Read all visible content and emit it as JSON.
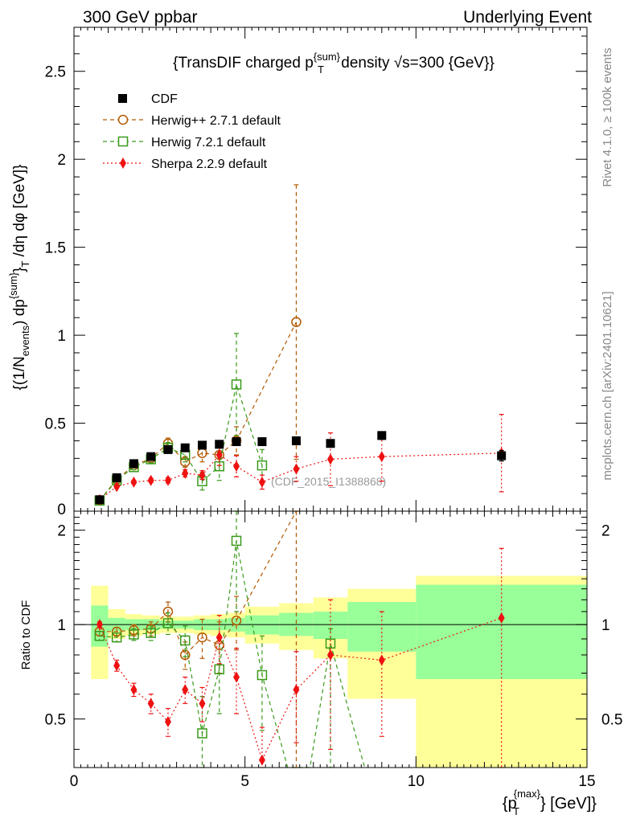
{
  "header": {
    "left": "300 GeV ppbar",
    "right": "Underlying Event"
  },
  "side": {
    "rivet": "Rivet 4.1.0, ≥ 100k events",
    "mcplots": "mcplots.cern.ch [arXiv:2401.10621]"
  },
  "chart_data": {
    "type": "line",
    "title": "{TransDIF charged p^{sum}_T density √s=300 {GeV}}",
    "title_parts": {
      "pre": "{TransDIF charged p",
      "sup": "{sum}",
      "sub": "T",
      "post": " density √s=300 {GeV}}"
    },
    "ylabel": "{(1/N_events) dp^{sum}_T /dη dφ [GeV]}",
    "ylabel_parts": {
      "a": "{(1/N",
      "a_sub": "events",
      "b": ") dp",
      "b_sup": "{sum}",
      "c": "}",
      "c_sub": "T",
      "d": " /dη  dφ [GeV]}"
    },
    "xlabel": "{p_T^{max}} [GeV]}",
    "xlabel_parts": {
      "a": "{p",
      "sup": "{max}",
      "sub": "T",
      "b": "} [GeV]}"
    },
    "watermark": "(CDF_2015_I1388868)",
    "xlim": [
      0,
      15
    ],
    "ylim": [
      0,
      2.75
    ],
    "x_ticks": [
      "0",
      "5",
      "10",
      "15"
    ],
    "y_ticks": [
      "0.5",
      "1",
      "1.5",
      "2",
      "2.5"
    ],
    "y_zero": "0",
    "ratio_ylabel": "Ratio to CDF",
    "ratio_ylim": [
      0.35,
      2.3
    ],
    "ratio_ticks": [
      "0.5",
      "1",
      "2"
    ],
    "legend": [
      "CDF",
      "Herwig++ 2.7.1 default",
      "Herwig 7.2.1 default",
      "Sherpa 2.2.9 default"
    ],
    "bins": [
      {
        "lo": 0.5,
        "hi": 1.0,
        "x": 0.75
      },
      {
        "lo": 1.0,
        "hi": 1.5,
        "x": 1.25
      },
      {
        "lo": 1.5,
        "hi": 2.0,
        "x": 1.75
      },
      {
        "lo": 2.0,
        "hi": 2.5,
        "x": 2.25
      },
      {
        "lo": 2.5,
        "hi": 3.0,
        "x": 2.75
      },
      {
        "lo": 3.0,
        "hi": 3.5,
        "x": 3.25
      },
      {
        "lo": 3.5,
        "hi": 4.0,
        "x": 3.75
      },
      {
        "lo": 4.0,
        "hi": 4.5,
        "x": 4.25
      },
      {
        "lo": 4.5,
        "hi": 5.0,
        "x": 4.75
      },
      {
        "lo": 5.0,
        "hi": 6.0,
        "x": 5.5
      },
      {
        "lo": 6.0,
        "hi": 7.0,
        "x": 6.5
      },
      {
        "lo": 7.0,
        "hi": 8.0,
        "x": 7.5
      },
      {
        "lo": 8.0,
        "hi": 10.0,
        "x": 9.0
      },
      {
        "lo": 10.0,
        "hi": 15.0,
        "x": 12.5
      }
    ],
    "band_yellow": [
      [
        0.67,
        1.33
      ],
      [
        0.9,
        1.12
      ],
      [
        0.92,
        1.08
      ],
      [
        0.93,
        1.07
      ],
      [
        0.94,
        1.06
      ],
      [
        0.94,
        1.06
      ],
      [
        0.93,
        1.07
      ],
      [
        0.92,
        1.08
      ],
      [
        0.91,
        1.09
      ],
      [
        0.87,
        1.14
      ],
      [
        0.83,
        1.17
      ],
      [
        0.78,
        1.22
      ],
      [
        0.58,
        1.3
      ],
      [
        0.34,
        1.43
      ]
    ],
    "band_green": [
      [
        0.85,
        1.15
      ],
      [
        0.95,
        1.05
      ],
      [
        0.96,
        1.04
      ],
      [
        0.96,
        1.04
      ],
      [
        0.97,
        1.03
      ],
      [
        0.97,
        1.03
      ],
      [
        0.96,
        1.04
      ],
      [
        0.96,
        1.04
      ],
      [
        0.95,
        1.05
      ],
      [
        0.93,
        1.07
      ],
      [
        0.92,
        1.09
      ],
      [
        0.9,
        1.1
      ],
      [
        0.82,
        1.18
      ],
      [
        0.67,
        1.34
      ]
    ],
    "series": [
      {
        "name": "CDF",
        "color": "#000000",
        "marker": "filled-square",
        "x": [
          0.75,
          1.25,
          1.75,
          2.25,
          2.75,
          3.25,
          3.75,
          4.25,
          4.75,
          5.5,
          6.5,
          7.5,
          9.0,
          12.5
        ],
        "y": [
          0.065,
          0.19,
          0.27,
          0.31,
          0.35,
          0.36,
          0.375,
          0.38,
          0.395,
          0.395,
          0.4,
          0.385,
          0.43,
          0.315
        ],
        "err": [
          0.005,
          0.01,
          0.01,
          0.01,
          0.012,
          0.012,
          0.012,
          0.013,
          0.014,
          0.012,
          0.015,
          0.018,
          0.022,
          0.03
        ],
        "ratio": [],
        "ratio_err": []
      },
      {
        "name": "Herwig++ 2.7.1 default",
        "color": "#b35900",
        "marker": "open-circle",
        "dash": "5,4",
        "x": [
          0.75,
          1.25,
          1.75,
          2.25,
          2.75,
          3.25,
          3.75,
          4.25,
          4.75,
          6.5
        ],
        "y": [
          0.062,
          0.18,
          0.26,
          0.3,
          0.385,
          0.28,
          0.33,
          0.32,
          0.4,
          1.075
        ],
        "err": [
          0.005,
          0.01,
          0.015,
          0.02,
          0.03,
          0.03,
          0.05,
          0.06,
          0.08,
          0.78
        ],
        "ratio": [
          0.95,
          0.95,
          0.96,
          0.97,
          1.1,
          0.8,
          0.91,
          0.86,
          1.03,
          2.3
        ],
        "ratio_err": [
          0.03,
          0.03,
          0.04,
          0.05,
          0.08,
          0.08,
          0.13,
          0.16,
          0.2,
          2.0
        ]
      },
      {
        "name": "Herwig 7.2.1 default",
        "color": "#3a9a1a",
        "marker": "open-square",
        "dash": "5,4",
        "x": [
          0.75,
          1.25,
          1.75,
          2.25,
          2.75,
          3.25,
          3.75,
          4.25,
          4.75,
          5.5
        ],
        "y": [
          0.06,
          0.175,
          0.25,
          0.295,
          0.36,
          0.32,
          0.17,
          0.255,
          0.72,
          0.26
        ],
        "err": [
          0.005,
          0.01,
          0.015,
          0.02,
          0.03,
          0.04,
          0.05,
          0.08,
          0.29,
          0.09
        ],
        "ratio": [
          0.92,
          0.91,
          0.93,
          0.94,
          1.01,
          0.89,
          0.45,
          0.72,
          1.85,
          0.69
        ],
        "ratio_err": [
          0.03,
          0.03,
          0.04,
          0.05,
          0.08,
          0.1,
          0.14,
          0.2,
          0.75,
          0.23
        ],
        "ratio_tail": [
          [
            5.5,
            0.69
          ],
          [
            6.25,
            0.35
          ],
          [
            6.9,
            0.35
          ],
          [
            7.5,
            0.87
          ],
          [
            8.0,
            0.55
          ],
          [
            8.5,
            0.35
          ]
        ],
        "ratio_tail_errx": [
          7.5
        ],
        "ratio_tail_err": [
          [
            0.35,
            0.87
          ]
        ]
      },
      {
        "name": "Sherpa 2.2.9 default",
        "color": "#ee1111",
        "marker": "filled-diamond",
        "dash": "2,3",
        "x": [
          0.75,
          1.25,
          1.75,
          2.25,
          2.75,
          3.25,
          3.75,
          4.25,
          4.75,
          5.5,
          6.5,
          7.5,
          9.0,
          12.5
        ],
        "y": [
          0.065,
          0.14,
          0.165,
          0.175,
          0.175,
          0.215,
          0.205,
          0.32,
          0.255,
          0.165,
          0.24,
          0.295,
          0.31,
          0.33
        ],
        "err": [
          0.005,
          0.008,
          0.01,
          0.012,
          0.015,
          0.02,
          0.025,
          0.06,
          0.06,
          0.04,
          0.07,
          0.15,
          0.14,
          0.22
        ],
        "ratio": [
          1.0,
          0.74,
          0.62,
          0.56,
          0.49,
          0.62,
          0.56,
          0.91,
          0.68,
          0.37,
          0.62,
          0.8,
          0.77,
          1.05
        ],
        "ratio_err": [
          0.02,
          0.03,
          0.03,
          0.04,
          0.05,
          0.06,
          0.07,
          0.16,
          0.16,
          0.1,
          0.2,
          0.4,
          0.33,
          0.7
        ]
      }
    ]
  }
}
